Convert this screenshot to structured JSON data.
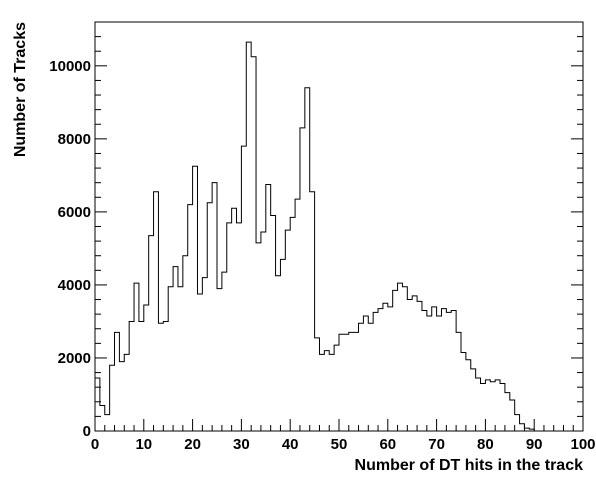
{
  "chart_data": {
    "type": "histogram",
    "title": "",
    "xlabel": "Number of DT hits in the track",
    "ylabel": "Number of Tracks",
    "xlim": [
      0,
      100
    ],
    "ylim": [
      0,
      11200
    ],
    "x_ticks": [
      "0",
      "10",
      "20",
      "30",
      "40",
      "50",
      "60",
      "70",
      "80",
      "90",
      "100"
    ],
    "y_ticks": [
      "0",
      "2000",
      "4000",
      "6000",
      "8000",
      "10000"
    ],
    "grid": false,
    "legend": "none",
    "bin_width": 1,
    "bin_edges_start": 0,
    "values": [
      1450,
      700,
      450,
      1800,
      2700,
      1900,
      2100,
      3000,
      4050,
      3000,
      3450,
      5350,
      6550,
      2950,
      3000,
      3950,
      4500,
      3950,
      4800,
      6200,
      7250,
      3750,
      4200,
      6250,
      6800,
      3900,
      4350,
      5700,
      6100,
      5700,
      7800,
      10650,
      10250,
      5150,
      5450,
      6750,
      5900,
      4250,
      4700,
      5500,
      5850,
      6350,
      8300,
      9400,
      6550,
      2550,
      2100,
      2200,
      2100,
      2350,
      2650,
      2650,
      2700,
      2700,
      2950,
      3150,
      2950,
      3250,
      3350,
      3500,
      3400,
      3850,
      4050,
      3950,
      3600,
      3700,
      3550,
      3300,
      3150,
      3400,
      3150,
      3350,
      3250,
      3300,
      2700,
      2150,
      1950,
      1700,
      1450,
      1300,
      1400,
      1350,
      1400,
      1300,
      1050,
      850,
      450,
      200,
      80,
      50,
      0,
      0,
      0,
      0,
      0,
      0,
      0,
      0,
      0,
      0
    ],
    "colors": {
      "line": "#000000",
      "background": "#ffffff"
    }
  }
}
